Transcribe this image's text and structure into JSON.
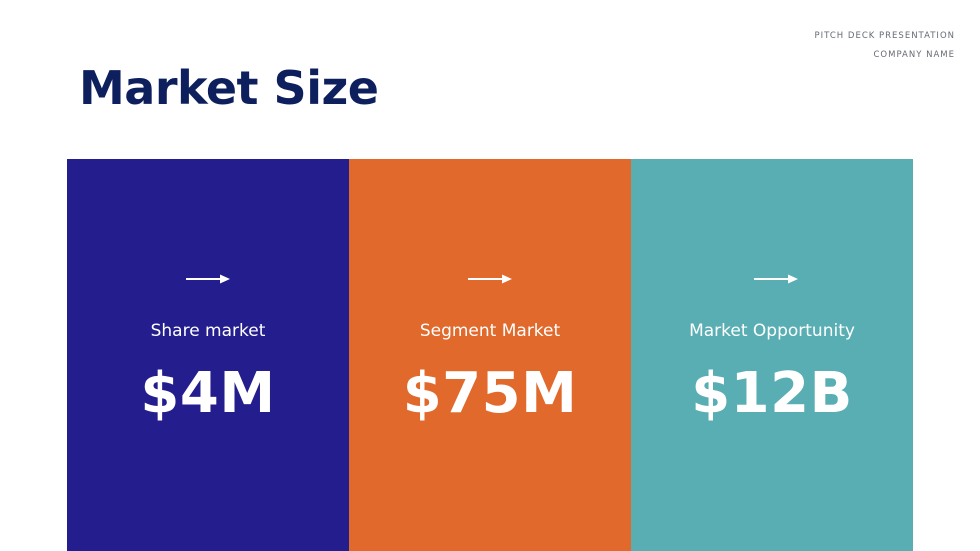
{
  "header": {
    "line1": "PITCH DECK PRESENTATION",
    "line2": "COMPANY NAME"
  },
  "title": "Market Size",
  "cards": [
    {
      "label": "Share market",
      "value": "$4M",
      "color": "#231d8d",
      "icon": "right-arrow-icon"
    },
    {
      "label": "Segment Market",
      "value": "$75M",
      "color": "#e0692b",
      "icon": "right-arrow-icon"
    },
    {
      "label": "Market Opportunity",
      "value": "$12B",
      "color": "#59aeb3",
      "icon": "right-arrow-icon"
    }
  ]
}
